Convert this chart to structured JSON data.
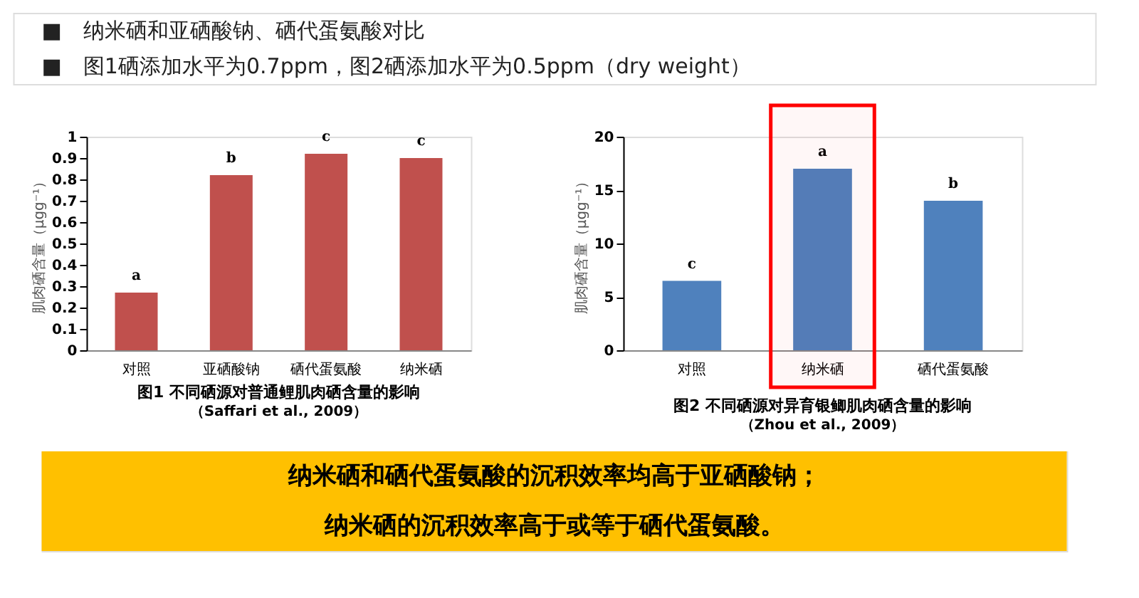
{
  "chart_data": [
    {
      "type": "other",
      "annotations": [
        "■　纳米硒和亚硒酸钠、硒代蛋氨酸对比",
        "■　图1硒添加水平为0.7ppm，图2硒添加水平为0.5ppm（dry  weight）"
      ]
    },
    {
      "type": "bar",
      "title": "图1  不同硒源对普通鲤肌肉硒含量的影响",
      "subtitle": "（Saffari et al., 2009）",
      "ylabel": "肌肉硒含量（μgg⁻¹）",
      "categories": [
        "对照",
        "亚硒酸钠",
        "硒代蛋氨酸",
        "纳米硒"
      ],
      "values": [
        0.27,
        0.82,
        0.92,
        0.9
      ],
      "color": "#c0504d",
      "ylim": [
        0,
        1
      ],
      "yticks": [
        0,
        0.1,
        0.2,
        0.3,
        0.4,
        0.5,
        0.6,
        0.7,
        0.8,
        0.9,
        1
      ],
      "grid": false,
      "annotations": [
        {
          "text": "a",
          "x": "对照",
          "y": 0.27
        },
        {
          "text": "b",
          "x": "亚硒酸钠",
          "y": 0.82
        },
        {
          "text": "c",
          "x": "硒代蛋氨酸",
          "y": 0.92
        },
        {
          "text": "c",
          "x": "纳米硒",
          "y": 0.9
        }
      ]
    },
    {
      "type": "bar",
      "title": "图2  不同硒源对异育银鲫肌肉硒含量的影响",
      "subtitle": "（Zhou et al., 2009）",
      "ylabel": "肌肉硒含量（μgg⁻¹）",
      "categories": [
        "对照",
        "纳米硒",
        "硒代蛋氨酸"
      ],
      "values": [
        6.5,
        17,
        14
      ],
      "color": "#4f81bd",
      "ylim": [
        0,
        20
      ],
      "yticks": [
        0,
        5,
        10,
        15,
        20
      ],
      "grid": false,
      "annotations": [
        {
          "text": "c",
          "x": "对照",
          "y": 6.5
        },
        {
          "text": "a",
          "x": "纳米硒",
          "y": 17
        },
        {
          "text": "b",
          "x": "硒代蛋氨酸",
          "y": 14
        }
      ],
      "bands": [
        {
          "axis": "x",
          "from": "纳米硒",
          "to": "纳米硒",
          "color": "#ff0000"
        }
      ]
    },
    {
      "type": "other",
      "color": "#ffc000",
      "annotations": [
        "纳米硒和硒代蛋氨酸的沉积效率均高于亚硒酸钠；",
        "纳米硒的沉积效率高于或等于硒代蛋氨酸。"
      ]
    }
  ]
}
